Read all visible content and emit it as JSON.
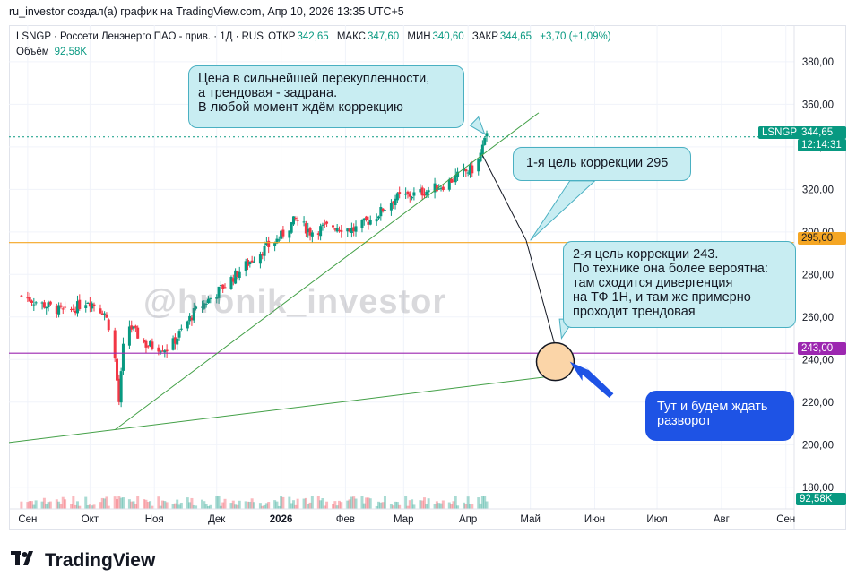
{
  "caption": "ru_investor создал(а) график на TradingView.com, Апр 10, 2026 13:35 UTC+5",
  "header": {
    "symbol_line": "LSNGP · Россети Ленэнерго ПАО - прив. · 1Д · RUS",
    "open_label": "ОТКР",
    "open": "342,65",
    "high_label": "МАКС",
    "high": "347,60",
    "low_label": "МИН",
    "low": "340,60",
    "close_label": "ЗАКР",
    "close": "344,65",
    "change": "+3,70 (+1,09%)",
    "volume_label": "Объём",
    "volume": "92,58K"
  },
  "watermark": "@hronik_investor",
  "callouts": {
    "overbought": "Цена в сильнейшей перекупленности,\nа трендовая - задрана.\nВ любой момент ждём коррекцию",
    "target1": "1-я цель коррекции 295",
    "target2": "2-я цель коррекции 243.\nПо технике она более вероятна:\nтам сходится дивергенция\nна ТФ 1Н, и там же примерно\nпроходит трендовая",
    "reversal": "Тут и будем ждать\nразворот"
  },
  "price_tags": {
    "symbol": "LSNGP",
    "last": "344,65",
    "countdown": "12:14:31",
    "level1": "295,00",
    "level2": "243,00",
    "volume": "92,58K"
  },
  "colors": {
    "up": "#089981",
    "down": "#f23645",
    "level1": "#f5a623",
    "level2": "#9c27b0",
    "trend": "#43a047",
    "callout_bg": "#c8edf2",
    "blue_callout": "#1e53e5"
  },
  "footer": {
    "brand": "TradingView"
  },
  "chart_data": {
    "type": "candlestick",
    "y_ticks": [
      "380,00",
      "360,00",
      "340,00",
      "320,00",
      "300,00",
      "280,00",
      "260,00",
      "240,00",
      "220,00",
      "200,00",
      "180,00"
    ],
    "x_ticks": [
      "Сен",
      "Окт",
      "Ноя",
      "Дек",
      "2026",
      "Фев",
      "Мар",
      "Апр",
      "Май",
      "Июн",
      "Июл",
      "Авг",
      "Сен"
    ],
    "ylim": [
      174,
      393
    ],
    "horizontal_levels": [
      295,
      243
    ],
    "last_price": 344.65,
    "close_path": [
      {
        "date": "2025-08-29",
        "close": 270
      },
      {
        "date": "2025-09-08",
        "close": 266
      },
      {
        "date": "2025-09-20",
        "close": 262
      },
      {
        "date": "2025-09-30",
        "close": 268
      },
      {
        "date": "2025-10-08",
        "close": 262
      },
      {
        "date": "2025-10-12",
        "close": 250
      },
      {
        "date": "2025-10-15",
        "close": 220
      },
      {
        "date": "2025-10-18",
        "close": 258
      },
      {
        "date": "2025-10-28",
        "close": 247
      },
      {
        "date": "2025-11-08",
        "close": 245
      },
      {
        "date": "2025-11-20",
        "close": 262
      },
      {
        "date": "2025-12-05",
        "close": 275
      },
      {
        "date": "2025-12-20",
        "close": 289
      },
      {
        "date": "2025-12-31",
        "close": 297
      },
      {
        "date": "2026-01-08",
        "close": 306
      },
      {
        "date": "2026-01-15",
        "close": 300
      },
      {
        "date": "2026-01-25",
        "close": 303
      },
      {
        "date": "2026-02-05",
        "close": 301
      },
      {
        "date": "2026-02-15",
        "close": 307
      },
      {
        "date": "2026-02-25",
        "close": 316
      },
      {
        "date": "2026-03-08",
        "close": 318
      },
      {
        "date": "2026-03-20",
        "close": 322
      },
      {
        "date": "2026-03-30",
        "close": 328
      },
      {
        "date": "2026-04-05",
        "close": 330
      },
      {
        "date": "2026-04-08",
        "close": 340
      },
      {
        "date": "2026-04-10",
        "close": 344.65
      }
    ]
  }
}
